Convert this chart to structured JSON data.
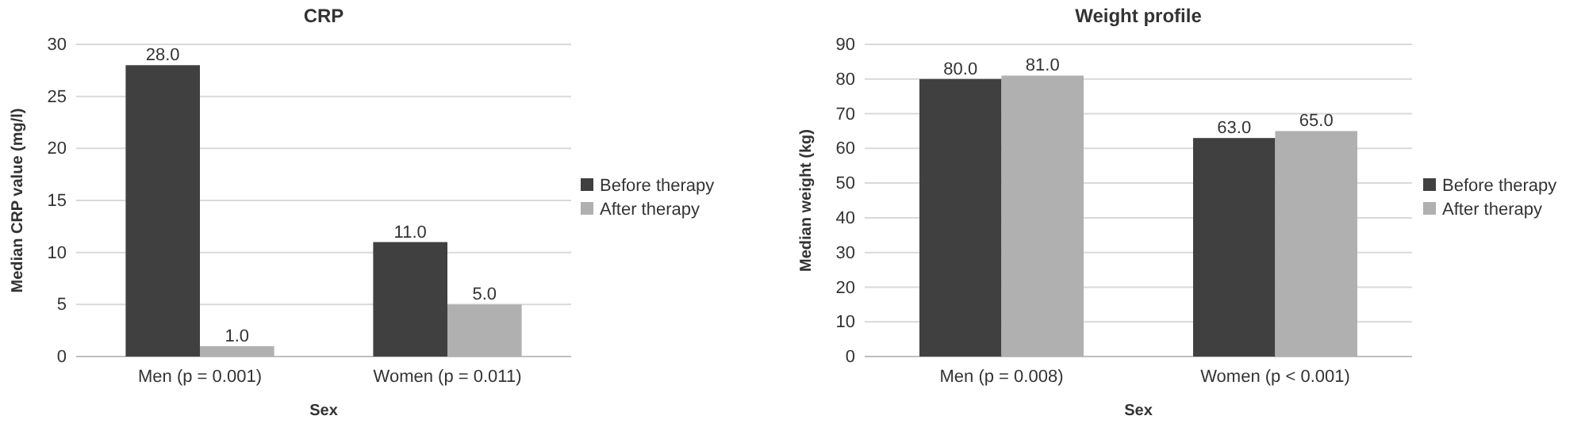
{
  "chart_data": [
    {
      "type": "bar",
      "title": "CRP",
      "xlabel": "Sex",
      "ylabel": "Median CRP value (mg/l)",
      "categories": [
        "Men (p = 0.001)",
        "Women (p = 0.011)"
      ],
      "series": [
        {
          "name": "Before therapy",
          "color": "#404040",
          "values": [
            28,
            11
          ],
          "value_labels": [
            "28.0",
            "11.0"
          ]
        },
        {
          "name": "After therapy",
          "color": "#b0b0b0",
          "values": [
            1,
            5
          ],
          "value_labels": [
            "1.0",
            "5.0"
          ]
        }
      ],
      "ylim": [
        0,
        30
      ],
      "yticks": [
        0,
        5,
        10,
        15,
        20,
        25,
        30
      ],
      "grid": "y",
      "legend": "right"
    },
    {
      "type": "bar",
      "title": "Weight profile",
      "xlabel": "Sex",
      "ylabel": "Median weight (kg)",
      "categories": [
        "Men (p = 0.008)",
        "Women (p < 0.001)"
      ],
      "series": [
        {
          "name": "Before therapy",
          "color": "#404040",
          "values": [
            80,
            63
          ],
          "value_labels": [
            "80.0",
            "63.0"
          ]
        },
        {
          "name": "After therapy",
          "color": "#b0b0b0",
          "values": [
            81,
            65
          ],
          "value_labels": [
            "81.0",
            "65.0"
          ]
        }
      ],
      "ylim": [
        0,
        90
      ],
      "yticks": [
        0,
        10,
        20,
        30,
        40,
        50,
        60,
        70,
        80,
        90
      ],
      "grid": "y",
      "legend": "right"
    }
  ]
}
